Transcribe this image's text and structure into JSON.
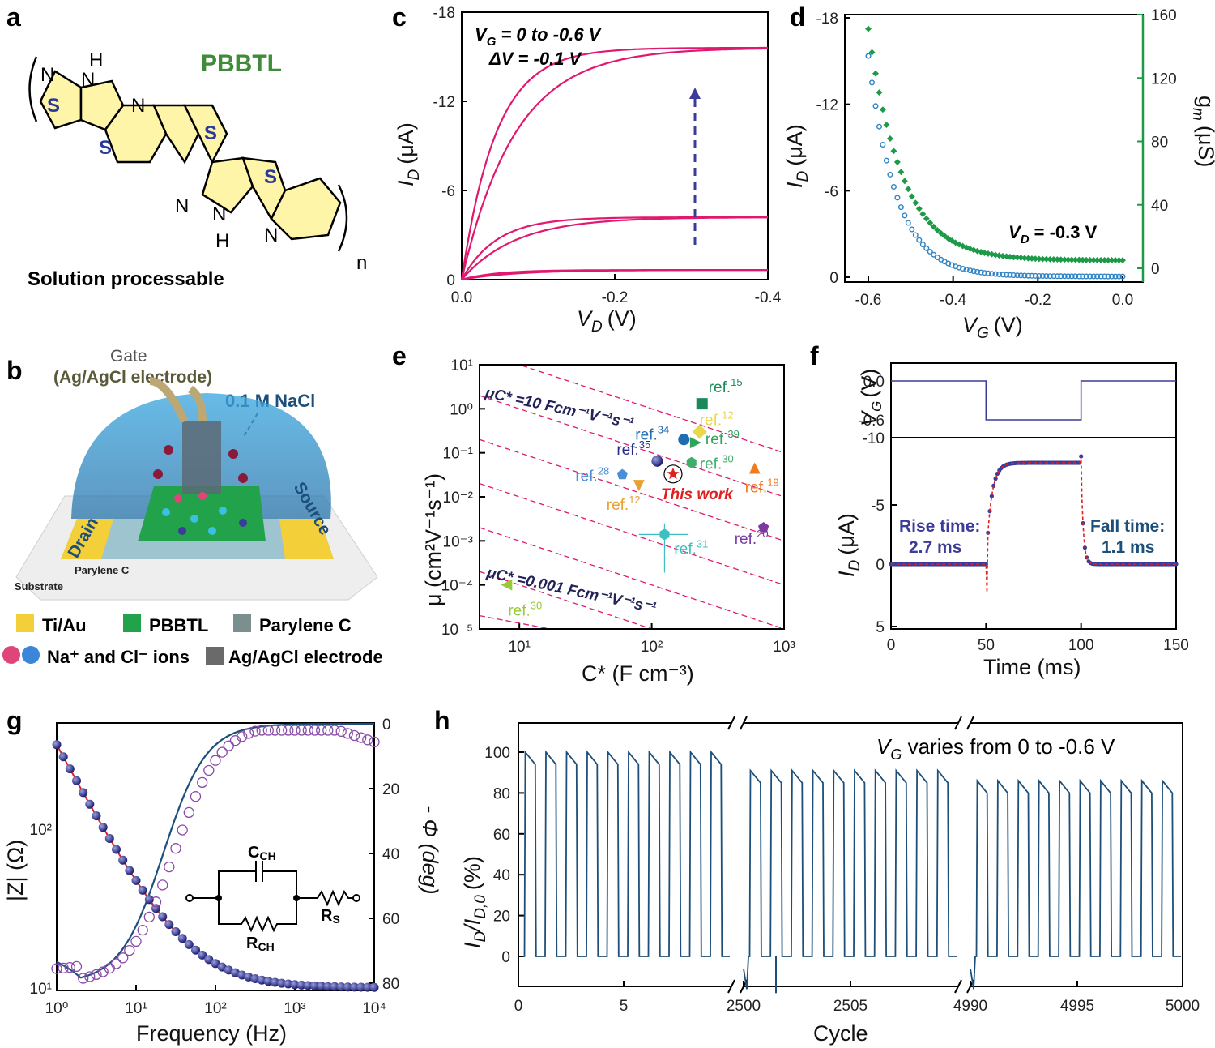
{
  "colors": {
    "pink": "#e0196f",
    "navy": "#23237a",
    "blue": "#2f84c4",
    "green": "#1d9a48",
    "red": "#e02020",
    "darkblue": "#1d4f7a",
    "struct_fill": "#fff5a8",
    "struct_atom": "#2b3a9a",
    "gold": "#f3cf3a",
    "film": "#22a24a",
    "parylene": "#7a8f8e",
    "dome": "#3aa6e0",
    "ion_pink": "#e0457a",
    "ion_blue": "#3b86d8",
    "grey": "#6a6a6a"
  },
  "panel_a": {
    "letter": "a",
    "title": "PBBTL",
    "subtitle": "Solution processable",
    "atoms": {
      "N": "N",
      "H": "H",
      "S": "S",
      "NH": "H",
      "n": "n"
    }
  },
  "panel_b": {
    "letter": "b",
    "gate": "Gate",
    "gate_sub": "(Ag/AgCl electrode)",
    "nacl": "0.1 M NaCl",
    "drain": "Drain",
    "source": "Source",
    "parylene": "Parylene C",
    "substrate": "Substrate",
    "legend": [
      {
        "label": "Ti/Au",
        "color": "#f3cf3a"
      },
      {
        "label": "PBBTL",
        "color": "#22a24a"
      },
      {
        "label": "Parylene C",
        "color": "#7a8f8e"
      }
    ],
    "ions": "Na⁺ and Cl⁻ ions",
    "electrode": "Ag/AgCl electrode"
  },
  "chart_data": [
    {
      "panel": "c",
      "type": "line",
      "xlabel": "V",
      "xlabel_sub": "D",
      "xunit": "(V)",
      "ylabel": "I",
      "ylabel_sub": "D",
      "yunit": "(μA)",
      "xlim": [
        0,
        -0.4
      ],
      "ylim": [
        0,
        -18
      ],
      "xticks": [
        "0.0",
        "-0.2",
        "-0.4"
      ],
      "yticks": [
        "0",
        "-6",
        "-12",
        "-18"
      ],
      "annotation1": "V",
      "annotation1_sub": "G",
      "annotation1_rest": " = 0 to -0.6 V",
      "annotation2": "ΔV = -0.1 V",
      "series": [
        {
          "sat": -15.6,
          "sat_back": -15.6
        },
        {
          "sat": -4.2,
          "sat_back": -4.2
        },
        {
          "sat": -0.65,
          "sat_back": -0.65
        }
      ]
    },
    {
      "panel": "d",
      "type": "scatter",
      "xlabel": "V",
      "xlabel_sub": "G",
      "xunit": "(V)",
      "ylabel": "I",
      "ylabel_sub": "D",
      "yunit": "(μA)",
      "y2label": "g",
      "y2label_sub": "m",
      "y2unit": "(μS)",
      "xlim": [
        -0.65,
        0.0
      ],
      "ylim": [
        0,
        -18
      ],
      "y2lim": [
        -8,
        160
      ],
      "xticks": [
        "-0.6",
        "-0.4",
        "-0.2",
        "0.0"
      ],
      "yticks": [
        "0",
        "-6",
        "-12",
        "-18"
      ],
      "y2ticks": [
        "0",
        "40",
        "80",
        "120",
        "160"
      ],
      "annotation": "V",
      "annotation_sub": "D",
      "annotation_rest": " = -0.3 V",
      "id_max": -15.3,
      "gm_max": 146
    },
    {
      "panel": "e",
      "type": "scatter",
      "xlabel": "C* (F cm⁻³)",
      "ylabel": "μ (cm²V⁻¹s⁻¹)",
      "xscale": "log",
      "yscale": "log",
      "xlim": [
        5,
        1000
      ],
      "ylim": [
        1e-05,
        10
      ],
      "xticks": [
        "10¹",
        "10²",
        "10³"
      ],
      "yticks": [
        "10¹",
        "10⁰",
        "10⁻¹",
        "10⁻²",
        "10⁻³",
        "10⁻⁴",
        "10⁻⁵"
      ],
      "line_top": "μC* =10 Fcm⁻¹V⁻¹s⁻¹",
      "line_bottom": "μC* =0.001 Fcm⁻¹V⁻¹s⁻¹",
      "this_work": "This work",
      "points": [
        {
          "label": "ref.",
          "sup": "15",
          "x": 240,
          "y": 1.3,
          "shape": "square",
          "color": "#1a8a5a"
        },
        {
          "label": "ref.",
          "sup": "12",
          "x": 230,
          "y": 0.3,
          "shape": "diamond",
          "color": "#e8d84a"
        },
        {
          "label": "ref.",
          "sup": "34",
          "x": 175,
          "y": 0.2,
          "shape": "circle",
          "color": "#1f6db0"
        },
        {
          "label": "ref.",
          "sup": "39",
          "x": 215,
          "y": 0.17,
          "shape": "triangle-right",
          "color": "#2ea35a"
        },
        {
          "label": "ref.",
          "sup": "35",
          "x": 110,
          "y": 0.065,
          "shape": "ball",
          "color": "#2a2a8a"
        },
        {
          "label": "ref.",
          "sup": "30",
          "x": 200,
          "y": 0.06,
          "shape": "hexagon",
          "color": "#3fae6a"
        },
        {
          "label": "ref.",
          "sup": "19",
          "x": 600,
          "y": 0.045,
          "shape": "triangle-up",
          "color": "#f07a1e"
        },
        {
          "label": "ref.",
          "sup": "28",
          "x": 60,
          "y": 0.032,
          "shape": "pentagon",
          "color": "#4a8fd6"
        },
        {
          "label": "ref.",
          "sup": "12",
          "x": 80,
          "y": 0.018,
          "shape": "triangle-down",
          "color": "#e8a030"
        },
        {
          "label": "ref.",
          "sup": "20",
          "x": 700,
          "y": 0.002,
          "shape": "pentagon",
          "color": "#7a3aa0"
        },
        {
          "label": "ref.",
          "sup": "31",
          "x": 125,
          "y": 0.0014,
          "shape": "half-hexagon",
          "color": "#3ec0c0"
        },
        {
          "label": "ref.",
          "sup": "30",
          "x": 8,
          "y": 0.0001,
          "shape": "triangle-left",
          "color": "#9ac83a"
        }
      ],
      "this_work_point": {
        "x": 145,
        "y": 0.033
      }
    },
    {
      "panel": "f",
      "type": "line",
      "xlabel": "Time (ms)",
      "ylabel_top": "V",
      "ylabel_top_sub": "G",
      "ylabel_top_unit": "(V)",
      "ylabel": "I",
      "ylabel_sub": "D",
      "yunit": "(μA)",
      "xlim": [
        0,
        150
      ],
      "xticks": [
        "0",
        "50",
        "100",
        "150"
      ],
      "ytop_ticks": [
        "0.0",
        "-0.6"
      ],
      "ytop_range_label": "-10",
      "yticks": [
        "-5",
        "0",
        "5"
      ],
      "rise": "Rise time:",
      "rise_val": "2.7 ms",
      "fall": "Fall time:",
      "fall_val": "1.1 ms",
      "on_level": -8.5,
      "off_level": 0,
      "pulse": [
        50,
        100
      ]
    },
    {
      "panel": "g",
      "type": "scatter",
      "xlabel": "Frequency (Hz)",
      "ylabel": "|Z| (Ω)",
      "y2label": "- Φ (deg)",
      "xscale": "log",
      "yscale": "log",
      "xticks": [
        "10⁰",
        "10¹",
        "10²",
        "10³",
        "10⁴"
      ],
      "yticks": [
        "10¹",
        "10²"
      ],
      "y2ticks": [
        "0",
        "20",
        "40",
        "60",
        "80"
      ],
      "circuit": {
        "c": "C",
        "c_sub": "CH",
        "r": "R",
        "r_sub": "CH",
        "rs": "R",
        "rs_sub": "S"
      }
    },
    {
      "panel": "h",
      "type": "line",
      "xlabel": "Cycle",
      "ylabel": "I",
      "ylabel_sub": "D",
      "ylabel_rest": "/I",
      "ylabel_sub2": "D,0",
      "yunit": "(%)",
      "yticks": [
        "0",
        "20",
        "40",
        "60",
        "80",
        "100"
      ],
      "xticks_1": [
        "0",
        "5",
        "2500"
      ],
      "xticks_2": [
        "2505",
        "4990"
      ],
      "xticks_3": [
        "4995",
        "5000"
      ],
      "annotation": "V",
      "annotation_sub": "G",
      "annotation_rest": " varies from 0 to -0.6 V",
      "segments": [
        {
          "cycles": 10,
          "peak": 100
        },
        {
          "cycles": 10,
          "peak": 91
        },
        {
          "cycles": 10,
          "peak": 86
        }
      ]
    }
  ]
}
